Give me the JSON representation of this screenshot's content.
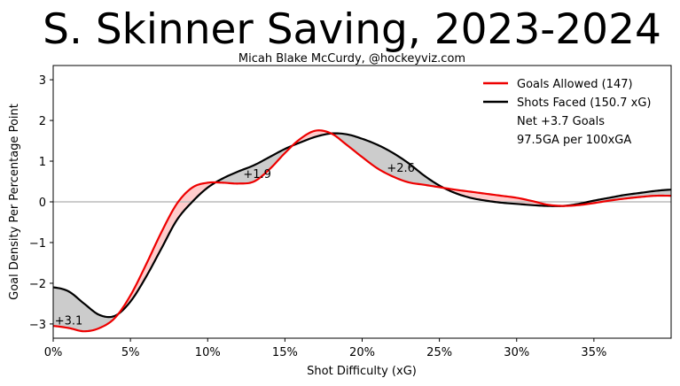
{
  "chart_data": {
    "type": "area",
    "title": "S. Skinner Saving, 2023-2024",
    "subtitle": "Micah Blake McCurdy, @hockeyviz.com",
    "xlabel": "Shot Difficulty (xG)",
    "ylabel": "Goal Density Per Percentage Point",
    "xlim": [
      0,
      40
    ],
    "ylim": [
      -3.35,
      3.35
    ],
    "x_ticks": [
      0,
      5,
      10,
      15,
      20,
      25,
      30,
      35
    ],
    "x_tick_labels": [
      "0%",
      "5%",
      "10%",
      "15%",
      "20%",
      "25%",
      "30%",
      "35%"
    ],
    "y_ticks": [
      -3,
      -2,
      -1,
      0,
      1,
      2,
      3
    ],
    "y_tick_labels": [
      "−3",
      "−2",
      "−1",
      "0",
      "1",
      "2",
      "3"
    ],
    "series": [
      {
        "name": "Goals Allowed (147)",
        "color": "#ee0000",
        "points": [
          [
            0,
            -3.05
          ],
          [
            1,
            -3.1
          ],
          [
            2,
            -3.18
          ],
          [
            3,
            -3.1
          ],
          [
            4,
            -2.85
          ],
          [
            5,
            -2.3
          ],
          [
            6,
            -1.55
          ],
          [
            7,
            -0.75
          ],
          [
            8,
            -0.05
          ],
          [
            9,
            0.35
          ],
          [
            10,
            0.47
          ],
          [
            11,
            0.47
          ],
          [
            12,
            0.45
          ],
          [
            13,
            0.5
          ],
          [
            14,
            0.8
          ],
          [
            15,
            1.2
          ],
          [
            16,
            1.55
          ],
          [
            17,
            1.75
          ],
          [
            18,
            1.68
          ],
          [
            19,
            1.4
          ],
          [
            20,
            1.1
          ],
          [
            21,
            0.82
          ],
          [
            22,
            0.62
          ],
          [
            23,
            0.48
          ],
          [
            24,
            0.42
          ],
          [
            25,
            0.36
          ],
          [
            26,
            0.3
          ],
          [
            27,
            0.25
          ],
          [
            28,
            0.2
          ],
          [
            29,
            0.15
          ],
          [
            30,
            0.1
          ],
          [
            31,
            0.02
          ],
          [
            32,
            -0.07
          ],
          [
            33,
            -0.1
          ],
          [
            34,
            -0.08
          ],
          [
            35,
            -0.03
          ],
          [
            36,
            0.03
          ],
          [
            37,
            0.08
          ],
          [
            38,
            0.12
          ],
          [
            39,
            0.15
          ],
          [
            40,
            0.15
          ]
        ]
      },
      {
        "name": "Shots Faced (150.7 xG)",
        "color": "#000000",
        "points": [
          [
            0,
            -2.1
          ],
          [
            1,
            -2.2
          ],
          [
            2,
            -2.5
          ],
          [
            3,
            -2.78
          ],
          [
            4,
            -2.8
          ],
          [
            5,
            -2.45
          ],
          [
            6,
            -1.85
          ],
          [
            7,
            -1.15
          ],
          [
            8,
            -0.45
          ],
          [
            9,
            0.0
          ],
          [
            10,
            0.35
          ],
          [
            11,
            0.58
          ],
          [
            12,
            0.75
          ],
          [
            13,
            0.9
          ],
          [
            14,
            1.1
          ],
          [
            15,
            1.3
          ],
          [
            16,
            1.46
          ],
          [
            17,
            1.6
          ],
          [
            18,
            1.68
          ],
          [
            19,
            1.66
          ],
          [
            20,
            1.55
          ],
          [
            21,
            1.4
          ],
          [
            22,
            1.2
          ],
          [
            23,
            0.95
          ],
          [
            24,
            0.65
          ],
          [
            25,
            0.4
          ],
          [
            26,
            0.22
          ],
          [
            27,
            0.1
          ],
          [
            28,
            0.03
          ],
          [
            29,
            -0.02
          ],
          [
            30,
            -0.05
          ],
          [
            31,
            -0.08
          ],
          [
            32,
            -0.1
          ],
          [
            33,
            -0.1
          ],
          [
            34,
            -0.05
          ],
          [
            35,
            0.03
          ],
          [
            36,
            0.1
          ],
          [
            37,
            0.17
          ],
          [
            38,
            0.22
          ],
          [
            39,
            0.27
          ],
          [
            40,
            0.3
          ]
        ]
      }
    ],
    "legend": {
      "position": "top-right",
      "entries": [
        {
          "label": "Goals Allowed (147)",
          "color": "#ee0000"
        },
        {
          "label": "Shots Faced (150.7 xG)",
          "color": "#000000"
        }
      ],
      "notes": [
        "Net +3.7 Goals",
        "97.5GA per 100xGA"
      ]
    },
    "annotations": [
      {
        "text": "+3.1",
        "x": 0.1,
        "y": -2.9
      },
      {
        "text": "+1.9",
        "x": 12.3,
        "y": 0.7
      },
      {
        "text": "+2.6",
        "x": 21.6,
        "y": 0.85
      }
    ],
    "fill_colors": {
      "goals_above": "#ffcccc",
      "shots_above": "#cccccc"
    },
    "zero_line_color": "#bbbbbb"
  }
}
